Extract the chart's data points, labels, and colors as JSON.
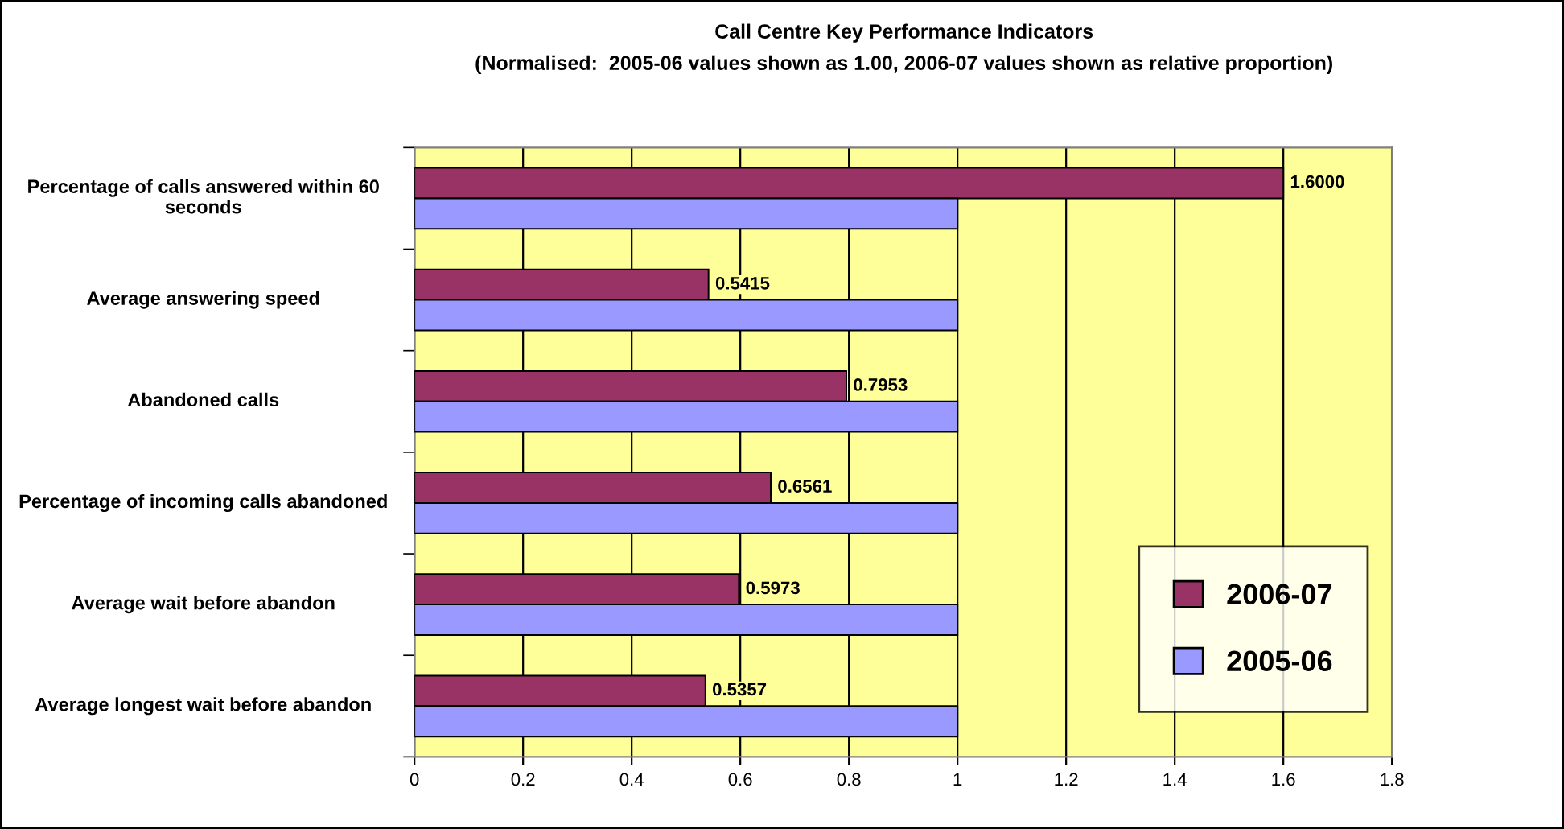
{
  "chart_data": {
    "type": "bar",
    "orientation": "horizontal",
    "title": "Call Centre Key Performance Indicators",
    "subtitle": "(Normalised:  2005-06 values shown as 1.00, 2006-07 values shown as relative proportion)",
    "categories": [
      "Percentage of calls answered within 60 seconds",
      "Average answering speed",
      "Abandoned calls",
      "Percentage of incoming calls abandoned",
      "Average wait before abandon",
      "Average longest wait before abandon"
    ],
    "series": [
      {
        "name": "2006-07",
        "color": "#993366",
        "values": [
          1.6,
          0.5415,
          0.7953,
          0.6561,
          0.5973,
          0.5357
        ],
        "value_labels": [
          "1.6000",
          "0.5415",
          "0.7953",
          "0.6561",
          "0.5973",
          "0.5357"
        ]
      },
      {
        "name": "2005-06",
        "color": "#9999ff",
        "values": [
          1,
          1,
          1,
          1,
          1,
          1
        ]
      }
    ],
    "xlim": [
      0,
      1.8
    ],
    "xticks": [
      0,
      0.2,
      0.4,
      0.6,
      0.8,
      1,
      1.2,
      1.4,
      1.6,
      1.8
    ],
    "grid": "x",
    "legend": "bottom right"
  }
}
